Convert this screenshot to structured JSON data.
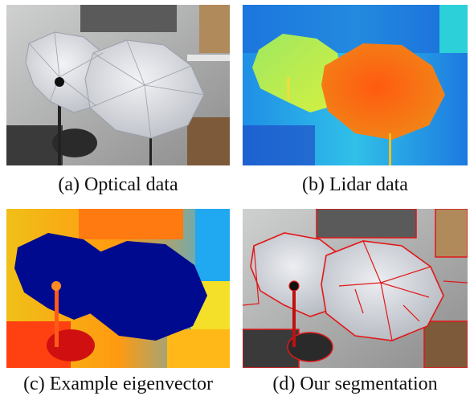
{
  "figure": {
    "panels": [
      {
        "id": "a",
        "caption": "(a) Optical data"
      },
      {
        "id": "b",
        "caption": "(b) Lidar data"
      },
      {
        "id": "c",
        "caption": "(c) Example eigenvector"
      },
      {
        "id": "d",
        "caption": "(d) Our segmentation"
      }
    ]
  }
}
